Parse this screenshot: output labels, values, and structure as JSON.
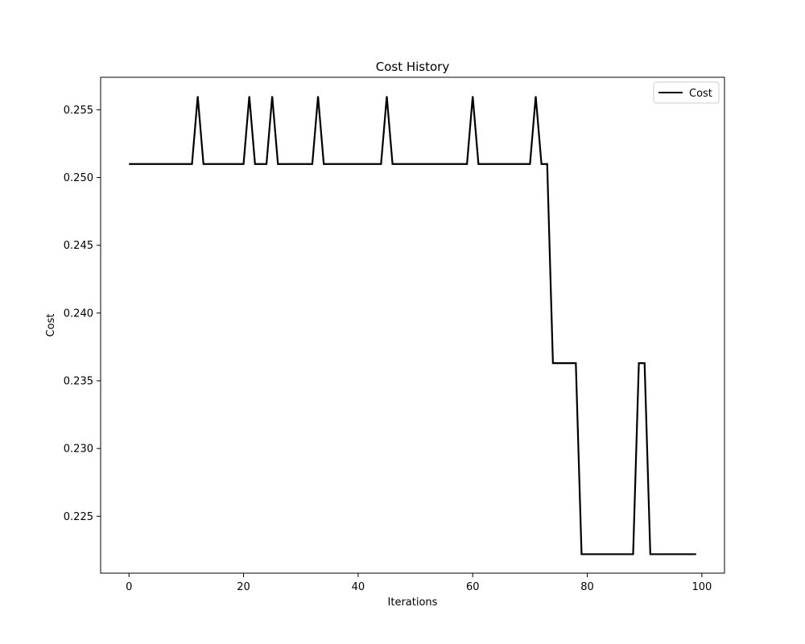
{
  "chart_data": {
    "type": "line",
    "title": "Cost History",
    "xlabel": "Iterations",
    "ylabel": "Cost",
    "xlim": [
      -4.95,
      103.95
    ],
    "ylim": [
      0.2208,
      0.2574
    ],
    "xticks": [
      0,
      20,
      40,
      60,
      80,
      100
    ],
    "yticks": [
      0.225,
      0.23,
      0.235,
      0.24,
      0.245,
      0.25,
      0.255
    ],
    "grid": false,
    "legend": {
      "placement": "top-right",
      "entries": [
        "Cost"
      ]
    },
    "series": [
      {
        "name": "Cost",
        "color": "#000000",
        "x": [
          0,
          1,
          2,
          3,
          4,
          5,
          6,
          7,
          8,
          9,
          10,
          11,
          12,
          13,
          14,
          15,
          16,
          17,
          18,
          19,
          20,
          21,
          22,
          23,
          24,
          25,
          26,
          27,
          28,
          29,
          30,
          31,
          32,
          33,
          34,
          35,
          36,
          37,
          38,
          39,
          40,
          41,
          42,
          43,
          44,
          45,
          46,
          47,
          48,
          49,
          50,
          51,
          52,
          53,
          54,
          55,
          56,
          57,
          58,
          59,
          60,
          61,
          62,
          63,
          64,
          65,
          66,
          67,
          68,
          69,
          70,
          71,
          72,
          73,
          74,
          75,
          76,
          77,
          78,
          79,
          80,
          81,
          82,
          83,
          84,
          85,
          86,
          87,
          88,
          89,
          90,
          91,
          92,
          93,
          94,
          95,
          96,
          97,
          98,
          99
        ],
        "y": [
          0.251,
          0.251,
          0.251,
          0.251,
          0.251,
          0.251,
          0.251,
          0.251,
          0.251,
          0.251,
          0.251,
          0.251,
          0.256,
          0.251,
          0.251,
          0.251,
          0.251,
          0.251,
          0.251,
          0.251,
          0.251,
          0.256,
          0.251,
          0.251,
          0.251,
          0.256,
          0.251,
          0.251,
          0.251,
          0.251,
          0.251,
          0.251,
          0.251,
          0.256,
          0.251,
          0.251,
          0.251,
          0.251,
          0.251,
          0.251,
          0.251,
          0.251,
          0.251,
          0.251,
          0.251,
          0.256,
          0.251,
          0.251,
          0.251,
          0.251,
          0.251,
          0.251,
          0.251,
          0.251,
          0.251,
          0.251,
          0.251,
          0.251,
          0.251,
          0.251,
          0.256,
          0.251,
          0.251,
          0.251,
          0.251,
          0.251,
          0.251,
          0.251,
          0.251,
          0.251,
          0.251,
          0.256,
          0.251,
          0.251,
          0.2363,
          0.2363,
          0.2363,
          0.2363,
          0.2363,
          0.2222,
          0.2222,
          0.2222,
          0.2222,
          0.2222,
          0.2222,
          0.2222,
          0.2222,
          0.2222,
          0.2222,
          0.2363,
          0.2363,
          0.2222,
          0.2222,
          0.2222,
          0.2222,
          0.2222,
          0.2222,
          0.2222,
          0.2222,
          0.2222
        ]
      }
    ]
  }
}
